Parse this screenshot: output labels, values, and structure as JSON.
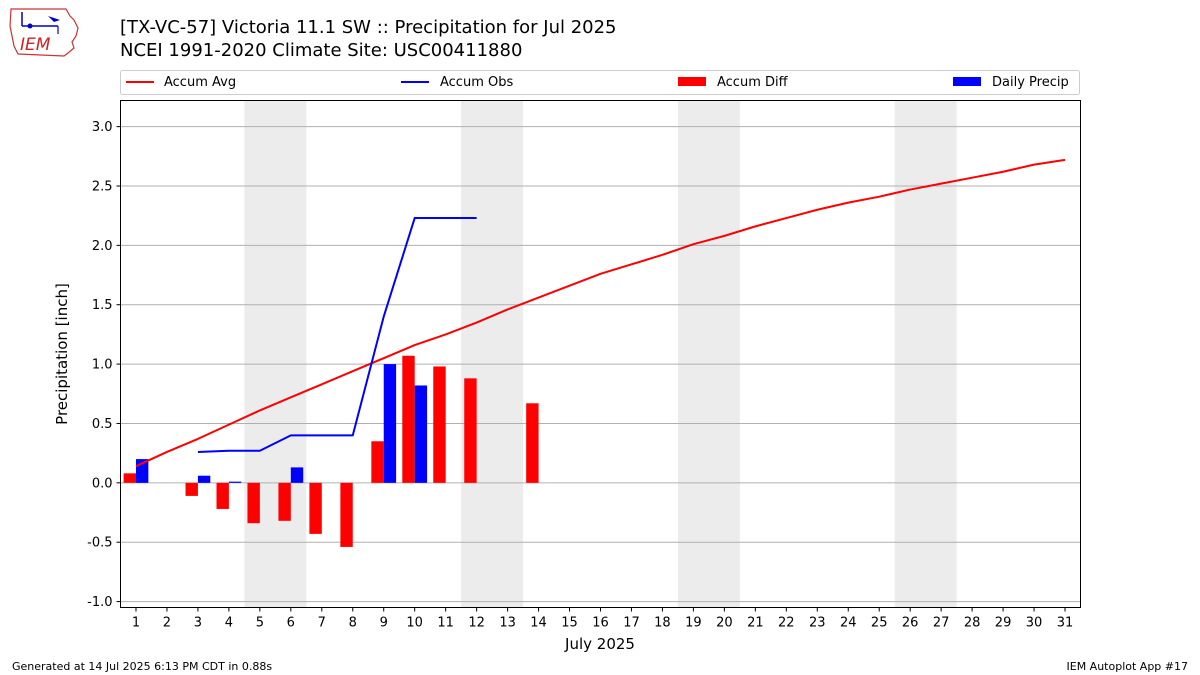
{
  "header": {
    "title_line1": "[TX-VC-57] Victoria 11.1 SW :: Precipitation for Jul 2025",
    "title_line2": "NCEI 1991-2020 Climate Site: USC00411880",
    "logo_text": "IEM"
  },
  "footer": {
    "generated": "Generated at 14 Jul 2025 6:13 PM CDT in 0.88s",
    "app": "IEM Autoplot App #17"
  },
  "colors": {
    "avg": "#ff0000",
    "obs": "#0000ff",
    "diff": "#ff0000",
    "daily": "#0000ff",
    "weekend": "#ececec",
    "grid": "#b0b0b0"
  },
  "chart_data": {
    "type": "bar",
    "xlabel": "July 2025",
    "ylabel": "Precipitation [inch]",
    "ylim": [
      -1.05,
      3.22
    ],
    "yticks": [
      "-1.0",
      "-0.5",
      "0.0",
      "0.5",
      "1.0",
      "1.5",
      "2.0",
      "2.5",
      "3.0"
    ],
    "ytick_values": [
      -1.0,
      -0.5,
      0.0,
      0.5,
      1.0,
      1.5,
      2.0,
      2.5,
      3.0
    ],
    "days": [
      1,
      2,
      3,
      4,
      5,
      6,
      7,
      8,
      9,
      10,
      11,
      12,
      13,
      14,
      15,
      16,
      17,
      18,
      19,
      20,
      21,
      22,
      23,
      24,
      25,
      26,
      27,
      28,
      29,
      30,
      31
    ],
    "grid": "horizontal",
    "legend_placement": "top, above plot",
    "weekend_bands": [
      [
        4.5,
        6.5
      ],
      [
        11.5,
        13.5
      ],
      [
        18.5,
        20.5
      ],
      [
        25.5,
        27.5
      ]
    ],
    "series": [
      {
        "name": "Accum Avg",
        "kind": "line",
        "x": [
          1,
          2,
          3,
          4,
          5,
          6,
          7,
          8,
          9,
          10,
          11,
          12,
          13,
          14,
          15,
          16,
          17,
          18,
          19,
          20,
          21,
          22,
          23,
          24,
          25,
          26,
          27,
          28,
          29,
          30,
          31
        ],
        "values": [
          0.14,
          0.26,
          0.37,
          0.49,
          0.61,
          0.72,
          0.83,
          0.94,
          1.05,
          1.16,
          1.25,
          1.35,
          1.46,
          1.56,
          1.66,
          1.76,
          1.84,
          1.92,
          2.01,
          2.08,
          2.16,
          2.23,
          2.3,
          2.36,
          2.41,
          2.47,
          2.52,
          2.57,
          2.62,
          2.68,
          2.72
        ]
      },
      {
        "name": "Accum Obs",
        "kind": "line",
        "x": [
          3,
          4,
          5,
          6,
          7,
          8,
          9,
          10,
          11,
          12
        ],
        "values": [
          0.26,
          0.27,
          0.27,
          0.4,
          0.4,
          0.4,
          1.4,
          2.23,
          2.23,
          2.23
        ]
      },
      {
        "name": "Accum Diff",
        "kind": "bar",
        "x": [
          1,
          3,
          4,
          5,
          6,
          7,
          8,
          9,
          10,
          11,
          12,
          14
        ],
        "values": [
          0.08,
          -0.11,
          -0.22,
          -0.34,
          -0.32,
          -0.43,
          -0.54,
          0.35,
          1.07,
          0.98,
          0.88,
          0.67
        ]
      },
      {
        "name": "Daily Precip",
        "kind": "bar",
        "x": [
          1,
          3,
          4,
          6,
          9,
          10
        ],
        "values": [
          0.2,
          0.06,
          0.01,
          0.13,
          1.0,
          0.82
        ]
      }
    ]
  }
}
